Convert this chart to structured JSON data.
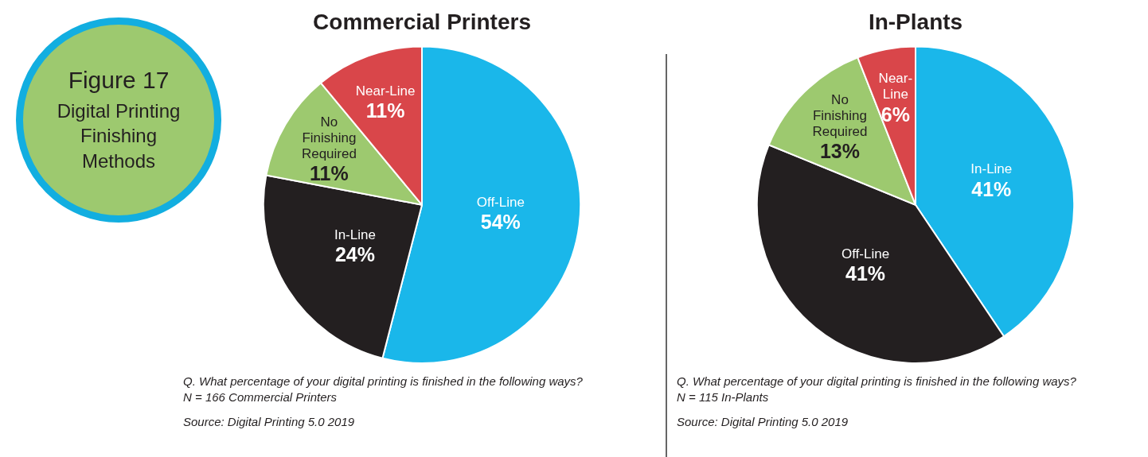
{
  "chart_data": [
    {
      "type": "other",
      "title": "Figure 17",
      "subtitle": "Digital Printing Finishing Methods"
    },
    {
      "type": "pie",
      "title": "Commercial Printers",
      "categories": [
        "Off-Line",
        "In-Line",
        "No Finishing Required",
        "Near-Line"
      ],
      "values": [
        54,
        24,
        11,
        11
      ],
      "value_labels": [
        "54%",
        "24%",
        "11%",
        "11%"
      ],
      "colors": [
        "#1ab7ea",
        "#231f20",
        "#9dc96f",
        "#d9464a"
      ],
      "legend": false,
      "annotations": [
        "Q. What percentage of your digital printing is finished in the following ways?",
        "N = 166 Commercial Printers",
        "Source: Digital Printing 5.0 2019"
      ]
    },
    {
      "type": "pie",
      "title": "In-Plants",
      "categories": [
        "In-Line",
        "Off-Line",
        "No Finishing Required",
        "Near-Line"
      ],
      "values": [
        41,
        41,
        13,
        6
      ],
      "value_labels": [
        "41%",
        "41%",
        "13%",
        "6%"
      ],
      "colors": [
        "#1ab7ea",
        "#231f20",
        "#9dc96f",
        "#d9464a"
      ],
      "legend": false,
      "annotations": [
        "Q. What percentage of your digital printing is finished in the following ways?",
        "N = 115 In-Plants",
        "Source: Digital Printing 5.0 2019"
      ]
    }
  ]
}
